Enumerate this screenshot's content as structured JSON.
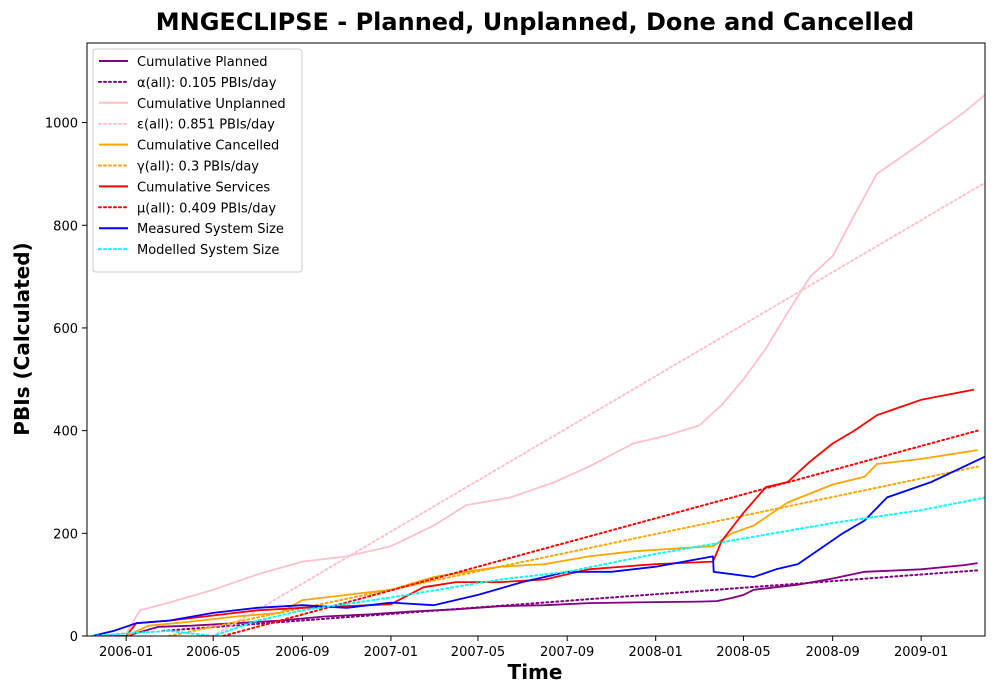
{
  "chart_data": {
    "type": "line",
    "title": "MNGECLIPSE - Planned, Unplanned, Done  and Cancelled",
    "xlabel": "Time",
    "ylabel": "PBIs (Calculated)",
    "xlim": [
      "2005-11-08",
      "2009-03-30"
    ],
    "ylim": [
      0,
      1155
    ],
    "x_ticks": [
      "2006-01",
      "2006-05",
      "2006-09",
      "2007-01",
      "2007-05",
      "2007-09",
      "2008-01",
      "2008-05",
      "2008-09",
      "2009-01"
    ],
    "y_ticks": [
      0,
      200,
      400,
      600,
      800,
      1000
    ],
    "grid": false,
    "legend_position": "top-left",
    "series": [
      {
        "name": "Cumulative Planned",
        "color": "#800080",
        "style": "solid",
        "x": [
          "2005-11-15",
          "2006-01-01",
          "2006-02-15",
          "2006-04-01",
          "2006-06-01",
          "2006-08-01",
          "2006-10-01",
          "2006-12-01",
          "2007-02-01",
          "2007-04-01",
          "2007-06-01",
          "2007-08-01",
          "2007-10-01",
          "2008-01-01",
          "2008-03-01",
          "2008-03-25",
          "2008-04-15",
          "2008-05-01",
          "2008-05-15",
          "2008-06-15",
          "2008-07-15",
          "2008-09-01",
          "2008-10-15",
          "2009-01-01",
          "2009-03-01",
          "2009-03-20"
        ],
        "values": [
          0,
          0,
          18,
          20,
          25,
          30,
          38,
          42,
          48,
          52,
          58,
          60,
          64,
          66,
          67,
          68,
          74,
          80,
          90,
          95,
          100,
          112,
          125,
          130,
          138,
          142
        ]
      },
      {
        "name": "α(all): 0.105 PBIs/day",
        "color": "#800080",
        "style": "dotted",
        "x": [
          "2006-02-20",
          "2009-03-20"
        ],
        "values": [
          10,
          128
        ]
      },
      {
        "name": "Cumulative Unplanned",
        "color": "#ffc0cb",
        "style": "solid",
        "x": [
          "2005-11-15",
          "2006-01-01",
          "2006-01-20",
          "2006-03-01",
          "2006-05-01",
          "2006-07-01",
          "2006-09-01",
          "2006-11-01",
          "2007-01-01",
          "2007-03-01",
          "2007-04-15",
          "2007-06-15",
          "2007-08-15",
          "2007-10-01",
          "2007-12-01",
          "2008-01-15",
          "2008-03-01",
          "2008-04-01",
          "2008-05-01",
          "2008-06-01",
          "2008-07-01",
          "2008-08-01",
          "2008-09-01",
          "2008-10-01",
          "2008-11-01",
          "2009-01-01",
          "2009-03-01",
          "2009-03-31"
        ],
        "values": [
          0,
          5,
          50,
          65,
          90,
          120,
          145,
          155,
          175,
          215,
          255,
          270,
          300,
          330,
          375,
          390,
          410,
          450,
          500,
          560,
          630,
          700,
          740,
          820,
          900,
          960,
          1020,
          1055
        ]
      },
      {
        "name": "ε(all): 0.851 PBIs/day",
        "color": "#ffc0cb",
        "style": "dotted",
        "x": [
          "2006-05-01",
          "2009-03-30"
        ],
        "values": [
          0,
          883
        ]
      },
      {
        "name": "Cumulative Cancelled",
        "color": "#ffa500",
        "style": "solid",
        "x": [
          "2005-11-15",
          "2006-01-01",
          "2006-02-01",
          "2006-04-01",
          "2006-06-01",
          "2006-08-01",
          "2006-09-01",
          "2006-11-01",
          "2007-01-01",
          "2007-03-01",
          "2007-04-15",
          "2007-06-01",
          "2007-08-01",
          "2007-10-01",
          "2007-12-01",
          "2008-03-20",
          "2008-04-15",
          "2008-05-15",
          "2008-07-01",
          "2008-09-01",
          "2008-10-15",
          "2008-11-01",
          "2009-01-01",
          "2009-03-20"
        ],
        "values": [
          0,
          0,
          20,
          28,
          38,
          45,
          70,
          80,
          90,
          115,
          125,
          135,
          140,
          155,
          165,
          175,
          200,
          215,
          260,
          295,
          310,
          335,
          345,
          362
        ]
      },
      {
        "name": "γ(all): 0.3 PBIs/day",
        "color": "#ffa500",
        "style": "dotted",
        "x": [
          "2006-03-01",
          "2009-03-20"
        ],
        "values": [
          0,
          330
        ]
      },
      {
        "name": "Cumulative Services",
        "color": "#ff0000",
        "style": "solid",
        "x": [
          "2005-11-15",
          "2006-01-01",
          "2006-01-15",
          "2006-03-01",
          "2006-05-01",
          "2006-07-01",
          "2006-09-01",
          "2006-11-01",
          "2007-01-01",
          "2007-02-15",
          "2007-04-01",
          "2007-06-01",
          "2007-08-01",
          "2007-10-01",
          "2008-01-01",
          "2008-03-20",
          "2008-04-01",
          "2008-05-01",
          "2008-06-01",
          "2008-07-01",
          "2008-08-01",
          "2008-09-01",
          "2008-10-01",
          "2008-11-01",
          "2009-01-01",
          "2009-03-15"
        ],
        "values": [
          0,
          0,
          25,
          30,
          40,
          50,
          55,
          58,
          62,
          95,
          105,
          105,
          110,
          130,
          140,
          145,
          185,
          240,
          290,
          300,
          340,
          375,
          400,
          430,
          460,
          480
        ]
      },
      {
        "name": "μ(all): 0.409 PBIs/day",
        "color": "#ff0000",
        "style": "dotted",
        "x": [
          "2006-05-15",
          "2009-03-20"
        ],
        "values": [
          0,
          400
        ]
      },
      {
        "name": "Measured System Size",
        "color": "#0000ff",
        "style": "solid",
        "x": [
          "2005-11-15",
          "2005-12-15",
          "2006-01-15",
          "2006-03-01",
          "2006-05-01",
          "2006-07-01",
          "2006-09-01",
          "2006-11-01",
          "2007-01-01",
          "2007-03-01",
          "2007-05-01",
          "2007-07-01",
          "2007-09-01",
          "2007-11-01",
          "2008-01-01",
          "2008-03-20",
          "2008-03-21",
          "2008-05-15",
          "2008-06-15",
          "2008-07-15",
          "2008-08-15",
          "2008-09-15",
          "2008-10-15",
          "2008-11-15",
          "2009-01-15",
          "2009-03-31"
        ],
        "values": [
          0,
          10,
          25,
          30,
          45,
          55,
          60,
          55,
          65,
          60,
          80,
          105,
          125,
          125,
          135,
          155,
          125,
          115,
          130,
          140,
          170,
          200,
          225,
          270,
          300,
          350
        ]
      },
      {
        "name": "Modelled System Size",
        "color": "#00ffff",
        "style": "dotted",
        "x": [
          "2005-11-15",
          "2006-01-01",
          "2006-03-01",
          "2006-05-01",
          "2006-07-01",
          "2006-09-01",
          "2007-01-01",
          "2007-06-01",
          "2007-09-01",
          "2008-01-01",
          "2008-05-01",
          "2008-09-01",
          "2009-01-01",
          "2009-03-31"
        ],
        "values": [
          0,
          5,
          10,
          0,
          30,
          50,
          75,
          110,
          125,
          160,
          190,
          220,
          245,
          270
        ]
      }
    ]
  }
}
